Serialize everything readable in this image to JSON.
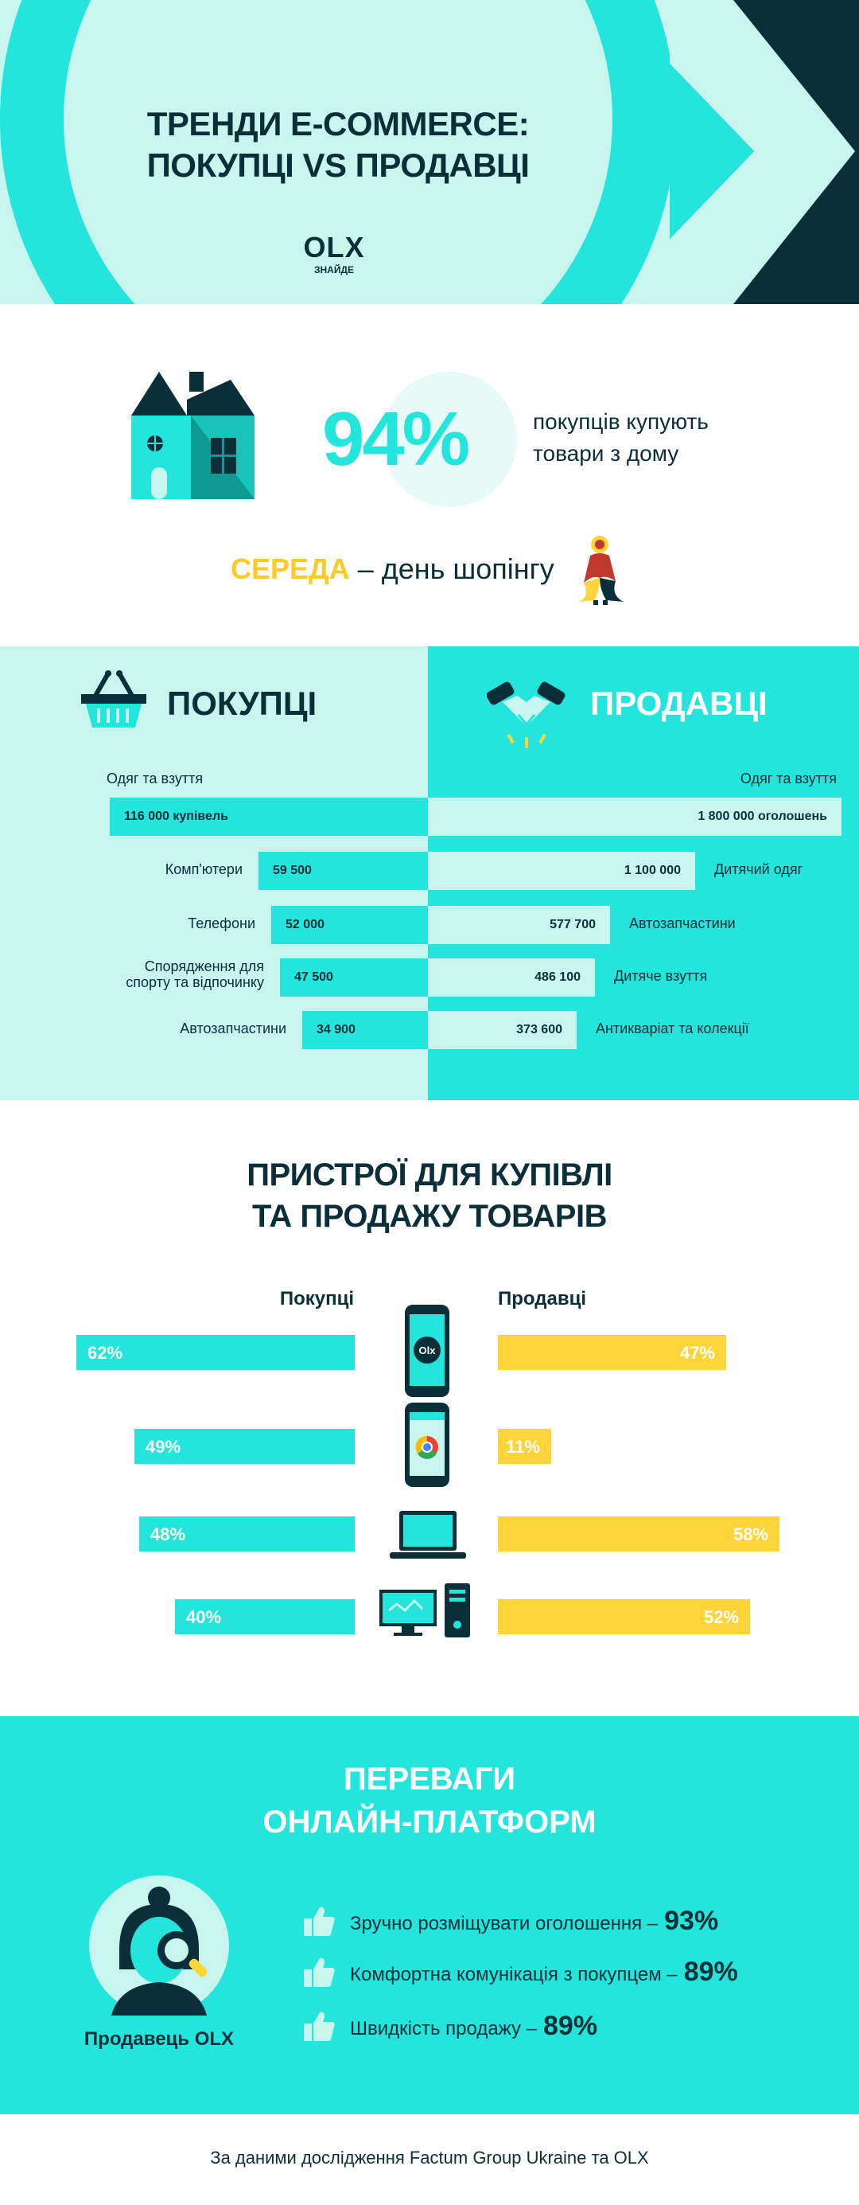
{
  "header": {
    "title_line1": "ТРЕНДИ E-COMMERCE:",
    "title_line2": "ПОКУПЦІ VS ПРОДАВЦІ",
    "logo": "OLX",
    "tagline": "ЗНАЙДЕ"
  },
  "home": {
    "percent": "94%",
    "text_line1": "покупців купують",
    "text_line2": "товари з дому",
    "day_highlight": "СЕРЕДА",
    "day_rest": "– день шопінгу"
  },
  "compare": {
    "buyers_title": "ПОКУПЦІ",
    "sellers_title": "ПРОДАВЦІ",
    "buyers": [
      {
        "category": "Одяг та взуття",
        "label": "116 000 купівель",
        "value": 116000
      },
      {
        "category": "Комп'ютери",
        "label": "59 500",
        "value": 59500
      },
      {
        "category": "Телефони",
        "label": "52 000",
        "value": 52000
      },
      {
        "category": "Спорядження для спорту та відпочинку",
        "label": "47 500",
        "value": 47500
      },
      {
        "category": "Автозапчастини",
        "label": "34 900",
        "value": 34900
      }
    ],
    "sellers": [
      {
        "category": "Одяг та взуття",
        "label": "1 800 000 оголошень",
        "value": 1800000
      },
      {
        "category": "Дитячий одяг",
        "label": "1 100 000",
        "value": 1100000
      },
      {
        "category": "Автозапчастини",
        "label": "577 700",
        "value": 577700
      },
      {
        "category": "Дитяче взуття",
        "label": "486 100",
        "value": 486100
      },
      {
        "category": "Антикваріат та колекції",
        "label": "373 600",
        "value": 373600
      }
    ]
  },
  "devices": {
    "title_line1": "ПРИСТРОЇ ДЛЯ КУПІВЛІ",
    "title_line2": "ТА ПРОДАЖУ ТОВАРІВ",
    "buyers_label": "Покупці",
    "sellers_label": "Продавці",
    "rows": [
      {
        "device": "olx-app-icon",
        "buyers_pct": "62%",
        "buyers_value": 62,
        "sellers_pct": "47%",
        "sellers_value": 47
      },
      {
        "device": "mobile-browser-icon",
        "buyers_pct": "49%",
        "buyers_value": 49,
        "sellers_pct": "11%",
        "sellers_value": 11
      },
      {
        "device": "laptop-icon",
        "buyers_pct": "48%",
        "buyers_value": 48,
        "sellers_pct": "58%",
        "sellers_value": 58
      },
      {
        "device": "desktop-icon",
        "buyers_pct": "40%",
        "buyers_value": 40,
        "sellers_pct": "52%",
        "sellers_value": 52
      }
    ]
  },
  "advantages": {
    "title_line1": "ПЕРЕВАГИ",
    "title_line2": "ОНЛАЙН-ПЛАТФОРМ",
    "seller_label": "Продавець OLX",
    "items": [
      {
        "text": "Зручно розміщувати оголошення –",
        "pct": "93%"
      },
      {
        "text": "Комфортна комунікація з покупцем –",
        "pct": "89%"
      },
      {
        "text": "Швидкість продажу –",
        "pct": "89%"
      }
    ]
  },
  "footer": {
    "source": "За даними дослідження Factum Group Ukraine та OLX"
  },
  "colors": {
    "turquoise": "#23e5db",
    "mint": "#c8f5ee",
    "dark": "#0b2f38",
    "yellow": "#ffd43b",
    "teal_dark": "#0c9a93"
  }
}
